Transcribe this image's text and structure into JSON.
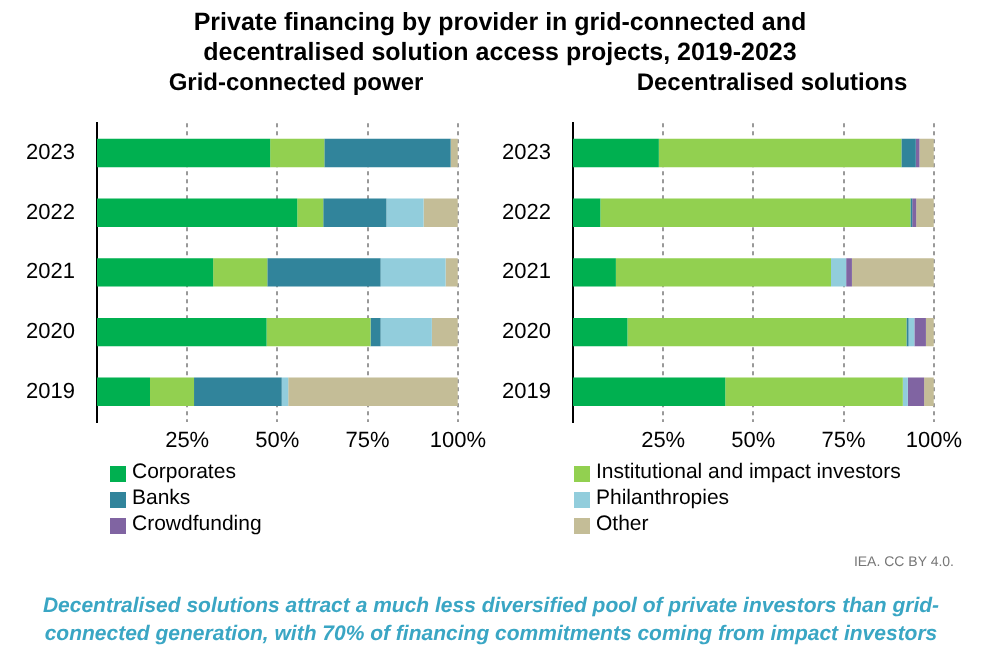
{
  "chart_data": [
    {
      "type": "bar",
      "title": "Private financing by provider in grid-connected and decentralised solution access projects, 2019-2023",
      "subtitle": "Grid-connected power",
      "orientation": "horizontal",
      "stacked": true,
      "categories": [
        "2023",
        "2022",
        "2021",
        "2020",
        "2019"
      ],
      "series": [
        {
          "name": "Corporates",
          "color": "#00b050",
          "values": [
            48,
            55.5,
            32.2,
            47,
            14.7
          ]
        },
        {
          "name": "Institutional and impact investors",
          "color": "#92d050",
          "values": [
            15,
            7.2,
            15,
            28.8,
            12.2
          ]
        },
        {
          "name": "Banks",
          "color": "#31849b",
          "values": [
            35,
            17.5,
            31.4,
            2.8,
            24.3
          ]
        },
        {
          "name": "Philanthropies",
          "color": "#92cddc",
          "values": [
            0,
            10.3,
            18,
            14.2,
            1.8
          ]
        },
        {
          "name": "Crowdfunding",
          "color": "#8064a2",
          "values": [
            0,
            0,
            0,
            0,
            0
          ]
        },
        {
          "name": "Other",
          "color": "#c4bd97",
          "values": [
            2,
            9.5,
            3.4,
            7.2,
            47
          ]
        }
      ],
      "xlim": [
        0,
        100
      ],
      "xticks": [
        {
          "value": 25,
          "label": "25%"
        },
        {
          "value": 50,
          "label": "50%"
        },
        {
          "value": 75,
          "label": "75%"
        },
        {
          "value": 100,
          "label": "100%"
        }
      ],
      "grid": "x",
      "legend": "bottom"
    },
    {
      "type": "bar",
      "subtitle": "Decentralised solutions",
      "orientation": "horizontal",
      "stacked": true,
      "categories": [
        "2023",
        "2022",
        "2021",
        "2020",
        "2019"
      ],
      "series": [
        {
          "color": "#00b050",
          "values": [
            23.8,
            7.6,
            11.9,
            15.1,
            42.2
          ]
        },
        {
          "color": "#92d050",
          "values": [
            67.2,
            85.9,
            59.6,
            77.3,
            49.2
          ]
        },
        {
          "color": "#31849b",
          "values": [
            4,
            0.5,
            0,
            0.6,
            0
          ]
        },
        {
          "color": "#92cddc",
          "values": [
            0,
            0,
            4.2,
            1.6,
            1.4
          ]
        },
        {
          "color": "#8064a2",
          "values": [
            1,
            1.1,
            1.6,
            3.2,
            4.5
          ]
        },
        {
          "color": "#c4bd97",
          "values": [
            4,
            4.9,
            22.7,
            2.2,
            2.7
          ]
        }
      ],
      "xlim": [
        0,
        100
      ],
      "xticks": [
        {
          "value": 25,
          "label": "25%"
        },
        {
          "value": 50,
          "label": "50%"
        },
        {
          "value": 75,
          "label": "75%"
        },
        {
          "value": 100,
          "label": "100%"
        }
      ],
      "grid": "x",
      "annotations": [
        "IEA. CC BY 4.0.",
        "Decentralised solutions attract a much less diversified pool of private investors than grid-connected generation, with 70% of financing commitments coming from impact investors"
      ]
    }
  ]
}
